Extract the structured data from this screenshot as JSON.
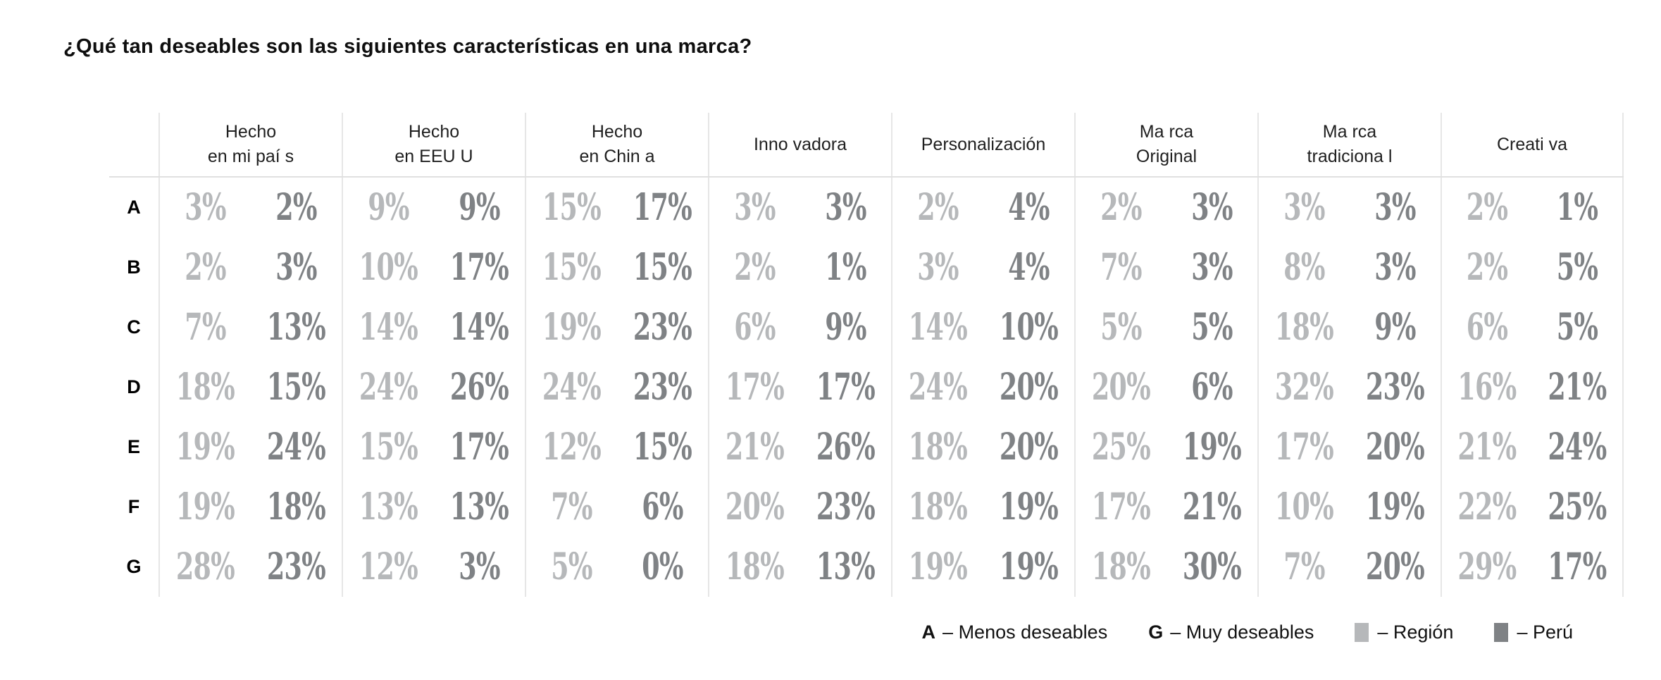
{
  "title": "¿Qué tan deseables son las siguientes características en una marca?",
  "colors": {
    "region": "#b6b8ba",
    "peru": "#7f8285",
    "divider": "#e6e6e6",
    "text": "#0e0e0e"
  },
  "legend": {
    "a_key": "A",
    "a_text": "– Menos deseables",
    "g_key": "G",
    "g_text": "– Muy deseables",
    "region_text": "– Región",
    "peru_text": "– Perú"
  },
  "chart_data": {
    "type": "table",
    "title": "¿Qué tan deseables son las siguientes características en una marca?",
    "unit": "%",
    "scale_note": "Rows A (Menos deseables) to G (Muy deseables); each cell shows Región then Perú",
    "series": [
      {
        "name": "Región",
        "color_ref": "region"
      },
      {
        "name": "Perú",
        "color_ref": "peru"
      }
    ],
    "columns": [
      {
        "lines": [
          "Hecho",
          "en mi paí s"
        ]
      },
      {
        "lines": [
          "Hecho",
          "en EEU U"
        ]
      },
      {
        "lines": [
          "Hecho",
          "en Chin a"
        ]
      },
      {
        "lines": [
          "Inno vadora"
        ]
      },
      {
        "lines": [
          "Personalización"
        ]
      },
      {
        "lines": [
          "Ma rca",
          "Original"
        ]
      },
      {
        "lines": [
          "Ma rca",
          "tradiciona l"
        ]
      },
      {
        "lines": [
          "Creati va"
        ]
      }
    ],
    "rows": [
      {
        "label": "A",
        "cells": [
          [
            3,
            2
          ],
          [
            9,
            9
          ],
          [
            15,
            17
          ],
          [
            3,
            3
          ],
          [
            2,
            4
          ],
          [
            2,
            3
          ],
          [
            3,
            3
          ],
          [
            2,
            1
          ]
        ]
      },
      {
        "label": "B",
        "cells": [
          [
            2,
            3
          ],
          [
            10,
            17
          ],
          [
            15,
            15
          ],
          [
            2,
            1
          ],
          [
            3,
            4
          ],
          [
            7,
            3
          ],
          [
            8,
            3
          ],
          [
            2,
            5
          ]
        ]
      },
      {
        "label": "C",
        "cells": [
          [
            7,
            13
          ],
          [
            14,
            14
          ],
          [
            19,
            23
          ],
          [
            6,
            9
          ],
          [
            14,
            10
          ],
          [
            5,
            5
          ],
          [
            18,
            9
          ],
          [
            6,
            5
          ]
        ]
      },
      {
        "label": "D",
        "cells": [
          [
            18,
            15
          ],
          [
            24,
            26
          ],
          [
            24,
            23
          ],
          [
            17,
            17
          ],
          [
            24,
            20
          ],
          [
            20,
            6
          ],
          [
            32,
            23
          ],
          [
            16,
            21
          ]
        ]
      },
      {
        "label": "E",
        "cells": [
          [
            19,
            24
          ],
          [
            15,
            17
          ],
          [
            12,
            15
          ],
          [
            21,
            26
          ],
          [
            18,
            20
          ],
          [
            25,
            19
          ],
          [
            17,
            20
          ],
          [
            21,
            24
          ]
        ]
      },
      {
        "label": "F",
        "cells": [
          [
            19,
            18
          ],
          [
            13,
            13
          ],
          [
            7,
            6
          ],
          [
            20,
            23
          ],
          [
            18,
            19
          ],
          [
            17,
            21
          ],
          [
            10,
            19
          ],
          [
            22,
            25
          ]
        ]
      },
      {
        "label": "G",
        "cells": [
          [
            28,
            23
          ],
          [
            12,
            3
          ],
          [
            5,
            0
          ],
          [
            18,
            13
          ],
          [
            19,
            19
          ],
          [
            18,
            30
          ],
          [
            7,
            20
          ],
          [
            29,
            17
          ]
        ]
      }
    ]
  }
}
